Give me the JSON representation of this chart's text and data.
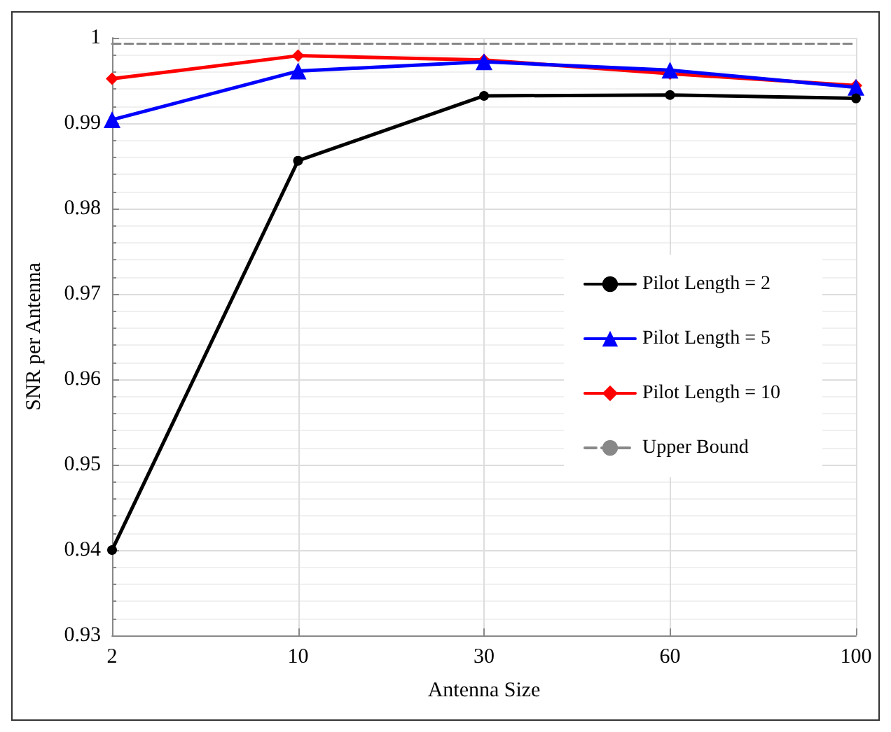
{
  "chart_data": {
    "type": "line",
    "xlabel": "Antenna Size",
    "ylabel": "SNR per Antenna",
    "categories": [
      "2",
      "10",
      "30",
      "60",
      "100"
    ],
    "ylim": [
      0.93,
      1
    ],
    "yticks": [
      0.93,
      0.94,
      0.95,
      0.96,
      0.97,
      0.98,
      0.99,
      1
    ],
    "grid": true,
    "legend": "right",
    "series": [
      {
        "name": "Pilot Length = 2",
        "color": "#000000",
        "marker": "circle",
        "values": [
          0.94,
          0.9856,
          0.9932,
          0.9933,
          0.9929
        ]
      },
      {
        "name": "Pilot Length = 5",
        "color": "#0000ff",
        "marker": "triangle",
        "values": [
          0.9904,
          0.9961,
          0.9972,
          0.9962,
          0.9942
        ]
      },
      {
        "name": "Pilot Length = 10",
        "color": "#ff0000",
        "marker": "diamond",
        "values": [
          0.9952,
          0.9979,
          0.9974,
          0.9958,
          0.9944
        ]
      },
      {
        "name": "Upper Bound",
        "color": "#888888",
        "marker": "none",
        "line_style": "dashed",
        "values": [
          0.9993,
          0.9993,
          0.9993,
          0.9993,
          0.9993
        ]
      }
    ]
  }
}
